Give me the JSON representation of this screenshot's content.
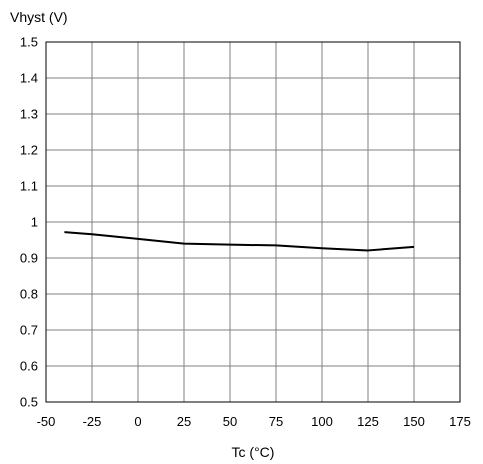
{
  "chart_data": {
    "type": "line",
    "title": "",
    "xlabel": "Tc (°C)",
    "ylabel": "Vhyst (V)",
    "xlim": [
      -50,
      175
    ],
    "ylim": [
      0.5,
      1.5
    ],
    "xticks": [
      -50,
      -25,
      0,
      25,
      50,
      75,
      100,
      125,
      150,
      175
    ],
    "yticks": [
      0.5,
      0.6,
      0.7,
      0.8,
      0.9,
      1,
      1.1,
      1.2,
      1.3,
      1.4,
      1.5
    ],
    "xtick_labels": [
      "-50",
      "-25",
      "0",
      "25",
      "50",
      "75",
      "100",
      "125",
      "150",
      "175"
    ],
    "ytick_labels": [
      "0.5",
      "0.6",
      "0.7",
      "0.8",
      "0.9",
      "1",
      "1.1",
      "1.2",
      "1.3",
      "1.4",
      "1.5"
    ],
    "grid": true,
    "legend": "none",
    "series": [
      {
        "color": "#000000",
        "x": [
          -40,
          -25,
          0,
          25,
          50,
          75,
          100,
          125,
          150
        ],
        "y": [
          0.972,
          0.966,
          0.953,
          0.94,
          0.937,
          0.935,
          0.927,
          0.921,
          0.931
        ]
      }
    ]
  },
  "colors": {
    "grid": "#808080",
    "frame": "#000000",
    "line": "#000000",
    "background": "#ffffff"
  }
}
